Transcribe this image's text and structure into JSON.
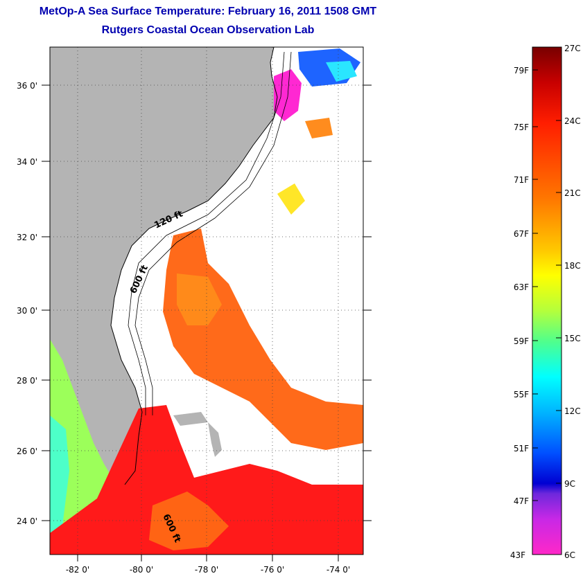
{
  "title": "MetOp-A Sea Surface Temperature:  February 16, 2011 1508 GMT",
  "subtitle": "Rutgers Coastal Ocean Observation Lab",
  "lat_labels": [
    "24 0'",
    "26 0'",
    "28 0'",
    "30 0'",
    "32 0'",
    "34 0'",
    "36 0'"
  ],
  "lon_labels": [
    "-82 0'",
    "-80 0'",
    "-78 0'",
    "-76 0'",
    "-74 0'"
  ],
  "contour_labels": [
    "120 ft",
    "600 ft",
    "600 ft"
  ],
  "colorbar": {
    "fahrenheit_labels": [
      "79F",
      "75F",
      "71F",
      "67F",
      "63F",
      "59F",
      "55F",
      "51F",
      "47F",
      "43F"
    ],
    "celsius_labels": [
      "27C",
      "24C",
      "21C",
      "18C",
      "15C",
      "12C",
      "9C",
      "6C"
    ],
    "range_c": [
      6,
      27
    ]
  },
  "colors": {
    "land": "#b4b4b4",
    "title": "#0000b0",
    "warm_sst": "#ff5a14",
    "hot_sst": "#ff1a1a"
  }
}
